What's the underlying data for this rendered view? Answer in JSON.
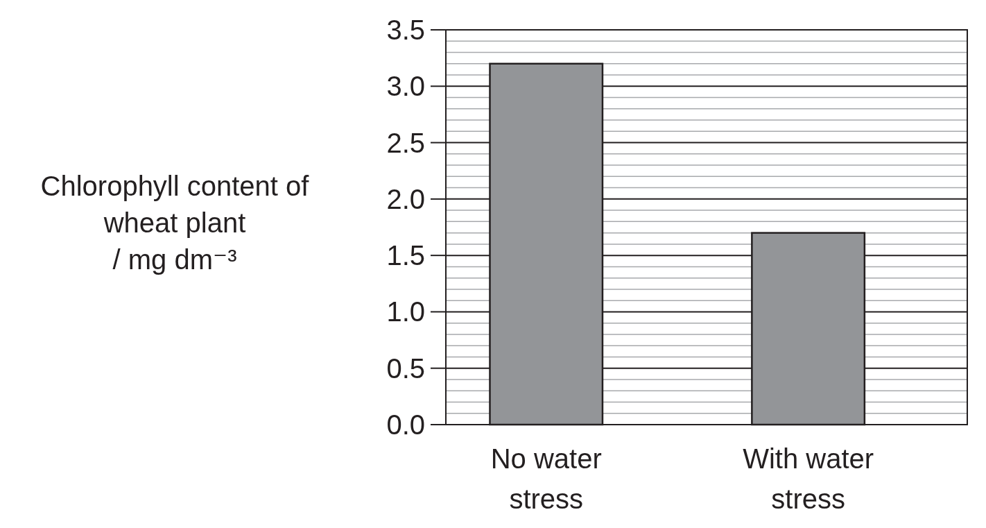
{
  "chart_data": {
    "type": "bar",
    "ylabel": "Chlorophyll content of\nwheat plant\n/ mg dm⁻³",
    "categories": [
      "No water\nstress",
      "With water\nstress"
    ],
    "values": [
      3.2,
      1.7
    ],
    "color": "#939598",
    "ylim": [
      0,
      3.5
    ],
    "yticks": [
      {
        "value": 0,
        "label": "0.0"
      },
      {
        "value": 0.5,
        "label": "0.5"
      },
      {
        "value": 1,
        "label": "1.0"
      },
      {
        "value": 1.5,
        "label": "1.5"
      },
      {
        "value": 2,
        "label": "2.0"
      },
      {
        "value": 2.5,
        "label": "2.5"
      },
      {
        "value": 3,
        "label": "3.0"
      },
      {
        "value": 3.5,
        "label": "3.5"
      }
    ],
    "grid": true
  }
}
